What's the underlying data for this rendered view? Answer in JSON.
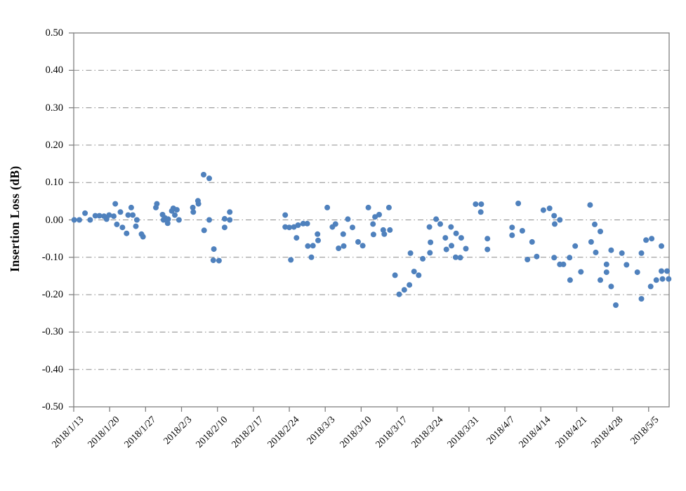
{
  "chart_data": {
    "type": "scatter",
    "title": "",
    "xlabel": "",
    "ylabel": "Insertion Loss (dB)",
    "ylim": [
      -0.5,
      0.5
    ],
    "y_tick_step": 0.1,
    "y_ticks": [
      "0.50",
      "0.40",
      "0.30",
      "0.20",
      "0.10",
      "0.00",
      "-0.10",
      "-0.20",
      "-0.30",
      "-0.40",
      "-0.50"
    ],
    "x_ticks": [
      "2018/1/13",
      "2018/1/20",
      "2018/1/27",
      "2018/2/3",
      "2018/2/10",
      "2018/2/17",
      "2018/2/24",
      "2018/3/3",
      "2018/3/10",
      "2018/3/17",
      "2018/3/24",
      "2018/3/31",
      "2018/4/7",
      "2018/4/14",
      "2018/4/21",
      "2018/4/28",
      "2018/5/5"
    ],
    "x_tick_interval_days": 7,
    "x_range_days": [
      0,
      116
    ],
    "grid": "horizontal dash-dot",
    "legend": "none",
    "marker": {
      "shape": "circle",
      "color": "#4F81BD",
      "radius_px": 4
    },
    "axis_color": "#808080",
    "grid_color": "#8C8C8C",
    "text_color": "#000000",
    "points_unit": "[days_since_2018/1/13, insertion_loss_dB]",
    "points": [
      [
        0.1,
        0.0
      ],
      [
        1.1,
        0.0
      ],
      [
        2.2,
        0.018
      ],
      [
        3.2,
        0.0
      ],
      [
        4.2,
        0.011
      ],
      [
        5.0,
        0.011
      ],
      [
        5.9,
        0.01
      ],
      [
        6.4,
        0.002
      ],
      [
        6.9,
        0.013
      ],
      [
        7.8,
        0.01
      ],
      [
        8.1,
        0.043
      ],
      [
        8.4,
        -0.012
      ],
      [
        9.1,
        0.021
      ],
      [
        9.5,
        -0.02
      ],
      [
        10.3,
        -0.036
      ],
      [
        10.6,
        0.013
      ],
      [
        11.2,
        0.033
      ],
      [
        11.5,
        0.013
      ],
      [
        12.1,
        -0.017
      ],
      [
        12.3,
        0.0
      ],
      [
        13.2,
        -0.038
      ],
      [
        13.5,
        -0.045
      ],
      [
        16.0,
        0.033
      ],
      [
        16.2,
        0.043
      ],
      [
        17.3,
        0.014
      ],
      [
        17.5,
        0.0
      ],
      [
        17.8,
        0.005
      ],
      [
        18.3,
        -0.009
      ],
      [
        18.4,
        0.002
      ],
      [
        19.1,
        0.024
      ],
      [
        19.4,
        0.031
      ],
      [
        19.7,
        0.013
      ],
      [
        20.1,
        0.027
      ],
      [
        20.5,
        0.0
      ],
      [
        23.2,
        0.033
      ],
      [
        23.3,
        0.021
      ],
      [
        24.2,
        0.051
      ],
      [
        24.3,
        0.043
      ],
      [
        25.3,
        0.121
      ],
      [
        25.4,
        -0.028
      ],
      [
        26.4,
        0.111
      ],
      [
        26.4,
        0.0
      ],
      [
        27.2,
        -0.108
      ],
      [
        27.3,
        -0.078
      ],
      [
        28.3,
        -0.109
      ],
      [
        29.4,
        0.003
      ],
      [
        29.4,
        -0.02
      ],
      [
        30.4,
        0.021
      ],
      [
        30.4,
        0.0
      ],
      [
        41.2,
        0.013
      ],
      [
        41.2,
        -0.019
      ],
      [
        42.0,
        -0.02
      ],
      [
        42.3,
        -0.107
      ],
      [
        42.9,
        -0.019
      ],
      [
        43.4,
        -0.048
      ],
      [
        43.7,
        -0.014
      ],
      [
        44.7,
        -0.01
      ],
      [
        45.5,
        -0.01
      ],
      [
        45.6,
        -0.07
      ],
      [
        46.3,
        -0.1
      ],
      [
        46.6,
        -0.069
      ],
      [
        47.5,
        -0.038
      ],
      [
        47.6,
        -0.055
      ],
      [
        49.4,
        0.033
      ],
      [
        50.4,
        -0.019
      ],
      [
        51.0,
        -0.011
      ],
      [
        51.6,
        -0.076
      ],
      [
        52.5,
        -0.038
      ],
      [
        52.6,
        -0.07
      ],
      [
        53.4,
        0.002
      ],
      [
        54.3,
        -0.02
      ],
      [
        55.4,
        -0.059
      ],
      [
        56.3,
        -0.069
      ],
      [
        57.4,
        0.033
      ],
      [
        58.3,
        -0.011
      ],
      [
        58.4,
        -0.039
      ],
      [
        58.7,
        0.008
      ],
      [
        59.5,
        0.014
      ],
      [
        60.3,
        -0.027
      ],
      [
        60.5,
        -0.038
      ],
      [
        61.4,
        0.033
      ],
      [
        61.6,
        -0.027
      ],
      [
        62.6,
        -0.148
      ],
      [
        63.4,
        -0.199
      ],
      [
        64.4,
        -0.187
      ],
      [
        65.4,
        -0.174
      ],
      [
        65.6,
        -0.089
      ],
      [
        66.3,
        -0.138
      ],
      [
        67.2,
        -0.148
      ],
      [
        68.0,
        -0.104
      ],
      [
        69.3,
        -0.019
      ],
      [
        69.4,
        -0.088
      ],
      [
        69.5,
        -0.06
      ],
      [
        70.6,
        0.002
      ],
      [
        71.4,
        -0.011
      ],
      [
        72.4,
        -0.048
      ],
      [
        72.6,
        -0.079
      ],
      [
        73.5,
        -0.019
      ],
      [
        73.6,
        -0.069
      ],
      [
        74.4,
        -0.1
      ],
      [
        74.5,
        -0.036
      ],
      [
        75.3,
        -0.101
      ],
      [
        75.5,
        -0.048
      ],
      [
        76.4,
        -0.077
      ],
      [
        78.3,
        0.042
      ],
      [
        79.4,
        0.042
      ],
      [
        79.3,
        0.021
      ],
      [
        80.6,
        -0.05
      ],
      [
        80.6,
        -0.079
      ],
      [
        85.4,
        -0.02
      ],
      [
        85.4,
        -0.041
      ],
      [
        86.6,
        0.044
      ],
      [
        87.4,
        -0.029
      ],
      [
        88.4,
        -0.106
      ],
      [
        89.3,
        -0.059
      ],
      [
        90.2,
        -0.098
      ],
      [
        91.5,
        0.026
      ],
      [
        92.7,
        0.031
      ],
      [
        93.6,
        0.011
      ],
      [
        93.6,
        -0.101
      ],
      [
        93.7,
        -0.011
      ],
      [
        94.7,
        0.0
      ],
      [
        94.7,
        -0.119
      ],
      [
        95.4,
        -0.119
      ],
      [
        96.6,
        -0.101
      ],
      [
        96.7,
        -0.161
      ],
      [
        97.7,
        -0.07
      ],
      [
        98.8,
        -0.139
      ],
      [
        100.6,
        0.04
      ],
      [
        100.8,
        -0.059
      ],
      [
        101.5,
        -0.012
      ],
      [
        101.7,
        -0.087
      ],
      [
        102.6,
        -0.031
      ],
      [
        102.6,
        -0.161
      ],
      [
        103.8,
        -0.119
      ],
      [
        103.8,
        -0.14
      ],
      [
        104.7,
        -0.081
      ],
      [
        104.7,
        -0.178
      ],
      [
        105.6,
        -0.228
      ],
      [
        106.8,
        -0.089
      ],
      [
        107.7,
        -0.12
      ],
      [
        109.8,
        -0.14
      ],
      [
        110.6,
        -0.089
      ],
      [
        110.6,
        -0.211
      ],
      [
        111.5,
        -0.054
      ],
      [
        112.4,
        -0.178
      ],
      [
        112.6,
        -0.05
      ],
      [
        113.5,
        -0.161
      ],
      [
        114.5,
        -0.07
      ],
      [
        114.5,
        -0.137
      ],
      [
        114.7,
        -0.158
      ],
      [
        115.6,
        -0.137
      ],
      [
        115.9,
        -0.158
      ]
    ]
  }
}
